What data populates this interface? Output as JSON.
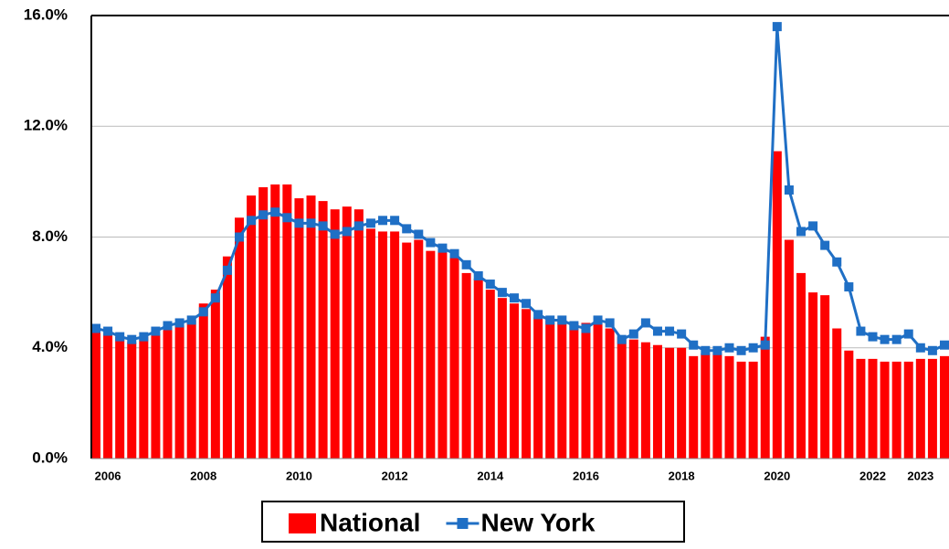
{
  "chart_data": {
    "type": "bar-line",
    "categories": [
      null,
      "2006",
      null,
      null,
      null,
      null,
      null,
      null,
      null,
      "2008",
      null,
      null,
      null,
      null,
      null,
      null,
      null,
      "2010",
      null,
      null,
      null,
      null,
      null,
      null,
      null,
      "2012",
      null,
      null,
      null,
      null,
      null,
      null,
      null,
      "2014",
      null,
      null,
      null,
      null,
      null,
      null,
      null,
      "2016",
      null,
      null,
      null,
      null,
      null,
      null,
      null,
      "2018",
      null,
      null,
      null,
      null,
      null,
      null,
      null,
      "2020",
      null,
      null,
      null,
      null,
      null,
      null,
      null,
      "2022",
      null,
      null,
      null,
      "2023",
      null,
      null
    ],
    "series": [
      {
        "name": "National",
        "type": "bar",
        "color": "#ff0000",
        "values": [
          4.7,
          4.5,
          4.4,
          4.2,
          4.4,
          4.5,
          4.7,
          4.8,
          5.0,
          5.6,
          6.1,
          7.3,
          8.7,
          9.5,
          9.8,
          9.9,
          9.9,
          9.4,
          9.5,
          9.3,
          9.0,
          9.1,
          9.0,
          8.3,
          8.2,
          8.2,
          7.8,
          7.9,
          7.5,
          7.5,
          7.3,
          6.7,
          6.5,
          6.1,
          5.8,
          5.6,
          5.4,
          5.1,
          5.0,
          5.0,
          4.9,
          4.9,
          4.9,
          4.7,
          4.4,
          4.3,
          4.2,
          4.1,
          4.0,
          4.0,
          3.7,
          3.8,
          3.8,
          3.7,
          3.5,
          3.5,
          4.4,
          11.1,
          7.9,
          6.7,
          6.0,
          5.9,
          4.7,
          3.9,
          3.6,
          3.6,
          3.5,
          3.5,
          3.5,
          3.6,
          3.6,
          3.7
        ]
      },
      {
        "name": "New York",
        "type": "line",
        "color": "#1f6fc5",
        "values": [
          4.7,
          4.6,
          4.4,
          4.3,
          4.4,
          4.6,
          4.8,
          4.9,
          5.0,
          5.3,
          5.8,
          6.8,
          8.0,
          8.6,
          8.8,
          8.9,
          8.7,
          8.5,
          8.5,
          8.4,
          8.1,
          8.2,
          8.4,
          8.5,
          8.6,
          8.6,
          8.3,
          8.1,
          7.8,
          7.6,
          7.4,
          7.0,
          6.6,
          6.3,
          6.0,
          5.8,
          5.6,
          5.2,
          5.0,
          5.0,
          4.8,
          4.7,
          5.0,
          4.9,
          4.3,
          4.5,
          4.9,
          4.6,
          4.6,
          4.5,
          4.1,
          3.9,
          3.9,
          4.0,
          3.9,
          4.0,
          4.1,
          15.6,
          9.7,
          8.2,
          8.4,
          7.7,
          7.1,
          6.2,
          4.6,
          4.4,
          4.3,
          4.3,
          4.5,
          4.0,
          3.9,
          4.1
        ]
      }
    ],
    "ylim": [
      0,
      16
    ],
    "yticks": [
      {
        "value": 0,
        "label": "0.0%"
      },
      {
        "value": 4,
        "label": "4.0%"
      },
      {
        "value": 8,
        "label": "8.0%"
      },
      {
        "value": 12,
        "label": "12.0%"
      },
      {
        "value": 16,
        "label": "16.0%"
      }
    ],
    "grid": true,
    "legend": "bottom"
  }
}
